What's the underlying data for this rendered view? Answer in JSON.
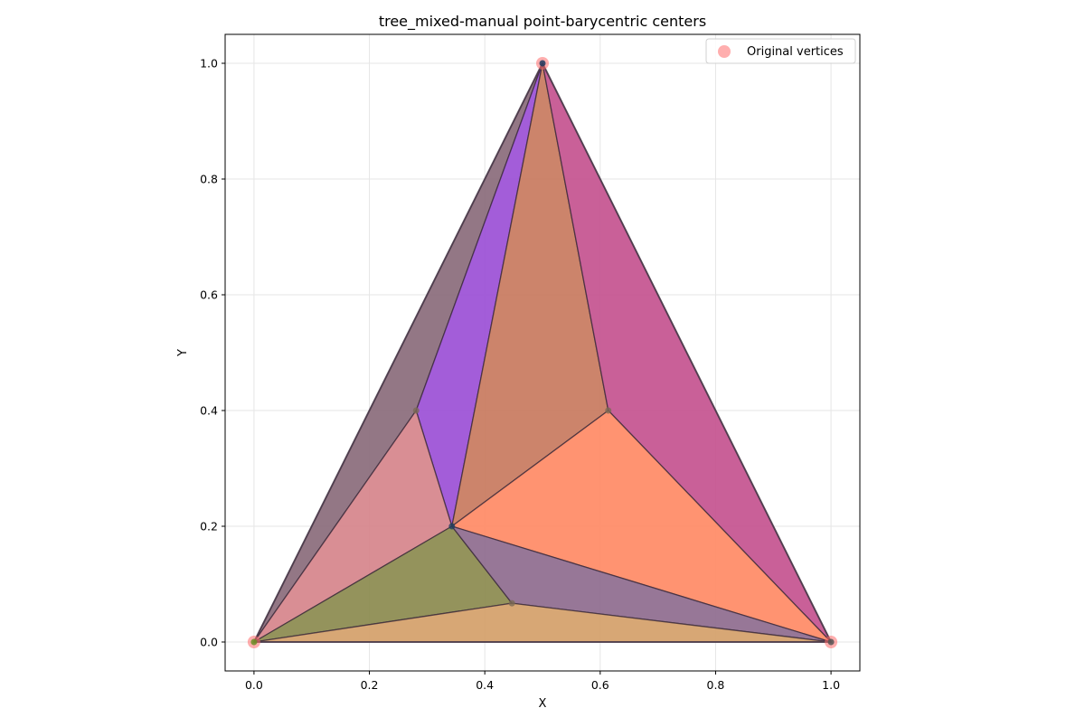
{
  "chart_data": {
    "type": "scatter",
    "title": "tree_mixed-manual point-barycentric centers",
    "xlabel": "X",
    "ylabel": "Y",
    "xlim": [
      -0.05,
      1.05
    ],
    "ylim": [
      -0.05,
      1.05
    ],
    "xticks": [
      "0.0",
      "0.2",
      "0.4",
      "0.6",
      "0.8",
      "1.0"
    ],
    "yticks": [
      "0.0",
      "0.2",
      "0.4",
      "0.6",
      "0.8",
      "1.0"
    ],
    "grid": true,
    "legend_position": "top-right",
    "series": [
      {
        "name": "Original vertices",
        "color": "#ff6b6b",
        "points": [
          [
            0.0,
            0.0
          ],
          [
            1.0,
            0.0
          ],
          [
            0.5,
            1.0
          ]
        ]
      }
    ],
    "interior_points": [
      [
        0.343,
        0.2
      ],
      [
        0.281,
        0.4
      ],
      [
        0.614,
        0.4
      ],
      [
        0.447,
        0.067
      ]
    ],
    "regions": [
      {
        "color": "#8a6b7b",
        "vertices": [
          [
            0.0,
            0.0
          ],
          [
            0.281,
            0.4
          ],
          [
            0.5,
            1.0
          ]
        ]
      },
      {
        "color": "#9b4fd6",
        "vertices": [
          [
            0.281,
            0.4
          ],
          [
            0.5,
            1.0
          ],
          [
            0.343,
            0.2
          ]
        ]
      },
      {
        "color": "#c8795e",
        "vertices": [
          [
            0.5,
            1.0
          ],
          [
            0.343,
            0.2
          ],
          [
            0.614,
            0.4
          ]
        ]
      },
      {
        "color": "#c4538f",
        "vertices": [
          [
            0.5,
            1.0
          ],
          [
            0.614,
            0.4
          ],
          [
            1.0,
            0.0
          ]
        ]
      },
      {
        "color": "#ff8a65",
        "vertices": [
          [
            0.343,
            0.2
          ],
          [
            0.614,
            0.4
          ],
          [
            1.0,
            0.0
          ]
        ]
      },
      {
        "color": "#d6848b",
        "vertices": [
          [
            0.0,
            0.0
          ],
          [
            0.281,
            0.4
          ],
          [
            0.343,
            0.2
          ]
        ]
      },
      {
        "color": "#8b8a4e",
        "vertices": [
          [
            0.0,
            0.0
          ],
          [
            0.343,
            0.2
          ],
          [
            0.447,
            0.067
          ]
        ]
      },
      {
        "color": "#8e6b8e",
        "vertices": [
          [
            0.343,
            0.2
          ],
          [
            0.447,
            0.067
          ],
          [
            1.0,
            0.0
          ]
        ]
      },
      {
        "color": "#d4a069",
        "vertices": [
          [
            0.0,
            0.0
          ],
          [
            0.447,
            0.067
          ],
          [
            1.0,
            0.0
          ]
        ]
      }
    ]
  }
}
